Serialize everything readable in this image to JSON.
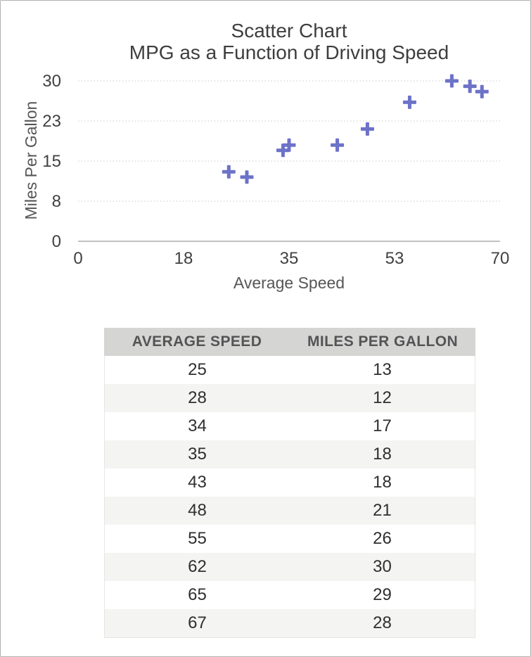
{
  "window": {
    "background": "#ffffff",
    "border_color": "#b2b2b2"
  },
  "chart_data": {
    "type": "scatter",
    "title": "Scatter Chart",
    "subtitle": "MPG as a Function of Driving Speed",
    "xlabel": "Average Speed",
    "ylabel": "Miles Per Gallon",
    "xlim": [
      0,
      70
    ],
    "ylim": [
      0,
      30
    ],
    "x_ticks": [
      {
        "value": 0,
        "label": "0"
      },
      {
        "value": 17.5,
        "label": "18"
      },
      {
        "value": 35,
        "label": "35"
      },
      {
        "value": 52.5,
        "label": "53"
      },
      {
        "value": 70,
        "label": "70"
      }
    ],
    "y_ticks": [
      {
        "value": 0,
        "label": "0"
      },
      {
        "value": 7.5,
        "label": "8"
      },
      {
        "value": 15,
        "label": "15"
      },
      {
        "value": 22.5,
        "label": "23"
      },
      {
        "value": 30,
        "label": "30"
      }
    ],
    "grid": "horizontal-dotted",
    "legend": "none",
    "marker": "plus",
    "marker_color": "#6c72c8",
    "gridline_color": "#cacaca",
    "axis_line_color": "#c2c2c2",
    "tick_label_color": "#414141",
    "points": [
      {
        "x": 25,
        "y": 13
      },
      {
        "x": 28,
        "y": 12
      },
      {
        "x": 34,
        "y": 17
      },
      {
        "x": 35,
        "y": 18
      },
      {
        "x": 43,
        "y": 18
      },
      {
        "x": 48,
        "y": 21
      },
      {
        "x": 55,
        "y": 26
      },
      {
        "x": 62,
        "y": 30
      },
      {
        "x": 65,
        "y": 29
      },
      {
        "x": 67,
        "y": 28
      }
    ]
  },
  "table": {
    "headers": [
      "AVERAGE SPEED",
      "MILES PER GALLON"
    ],
    "rows": [
      [
        "25",
        "13"
      ],
      [
        "28",
        "12"
      ],
      [
        "34",
        "17"
      ],
      [
        "35",
        "18"
      ],
      [
        "43",
        "18"
      ],
      [
        "48",
        "21"
      ],
      [
        "55",
        "26"
      ],
      [
        "62",
        "30"
      ],
      [
        "65",
        "29"
      ],
      [
        "67",
        "28"
      ]
    ],
    "header_bg": "#d5d5d3",
    "row_bg": "#ffffff",
    "row_alt_bg": "#f4f4f2"
  }
}
